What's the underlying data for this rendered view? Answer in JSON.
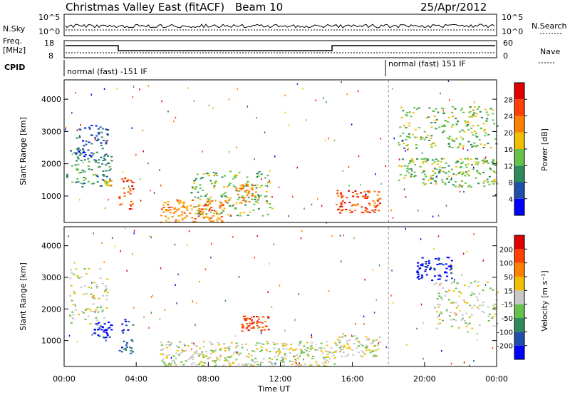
{
  "header": {
    "station": "Christmas Valley East (fitACF)",
    "beam": "Beam 10",
    "date": "25/Apr/2012"
  },
  "noise_panel": {
    "left_label": "N.Sky",
    "right_label": "N.Search",
    "left_ticks": [
      "10^5",
      "10^0"
    ],
    "right_ticks": [
      "10^5",
      "10^0"
    ]
  },
  "freq_panel": {
    "left_label_line1": "Freq.",
    "left_label_line2": "[MHz]",
    "right_label": "Nave",
    "left_ticks": [
      "18",
      "8"
    ],
    "right_ticks": [
      "60",
      "0"
    ]
  },
  "cpid": {
    "label": "CPID",
    "segments": [
      {
        "start_hour": 0,
        "end_hour": 18.0,
        "text": "normal (fast) -151 IF"
      },
      {
        "start_hour": 18.0,
        "end_hour": 24,
        "text": "normal (fast) 151 IF"
      }
    ]
  },
  "time_axis": {
    "label": "Time UT",
    "ticks": [
      "00:00",
      "04:00",
      "08:00",
      "12:00",
      "16:00",
      "20:00",
      "00:00"
    ]
  },
  "chart_data": [
    {
      "type": "heatmap",
      "name": "power",
      "ylabel": "Slant Range [km]",
      "yticks": [
        1000,
        2000,
        3000,
        4000
      ],
      "ylim": [
        180,
        4600
      ],
      "xlim": [
        0,
        24
      ],
      "colorbar": {
        "label": "Power [dB]",
        "ticks": [
          "4",
          "8",
          "12",
          "16",
          "20",
          "24",
          "28"
        ],
        "colors": [
          "#0000ff",
          "#1f4fa8",
          "#2d8a5a",
          "#66c24a",
          "#f0c000",
          "#ff8000",
          "#ff4000",
          "#e00000"
        ]
      },
      "features": [
        {
          "t0": 0.1,
          "t1": 2.6,
          "r0": 1300,
          "r1": 2500,
          "level": 2
        },
        {
          "t0": 0.6,
          "t1": 2.4,
          "r0": 2200,
          "r1": 3300,
          "level": 1
        },
        {
          "t0": 2.2,
          "t1": 2.6,
          "r0": 1300,
          "r1": 1500,
          "level": 4
        },
        {
          "t0": 3.0,
          "t1": 3.8,
          "r0": 600,
          "r1": 1700,
          "level": 6
        },
        {
          "t0": 5.3,
          "t1": 9.0,
          "r0": 200,
          "r1": 900,
          "level": 5
        },
        {
          "t0": 7.0,
          "t1": 11.5,
          "r0": 400,
          "r1": 1800,
          "level": 3
        },
        {
          "t0": 9.5,
          "t1": 10.6,
          "r0": 800,
          "r1": 1400,
          "level": 5
        },
        {
          "t0": 15.0,
          "t1": 17.5,
          "r0": 500,
          "r1": 1200,
          "level": 6
        },
        {
          "t0": 18.5,
          "t1": 24.0,
          "r0": 2500,
          "r1": 3800,
          "level": 3
        },
        {
          "t0": 18.5,
          "t1": 24.0,
          "r0": 1300,
          "r1": 2200,
          "level": 3
        }
      ]
    },
    {
      "type": "heatmap",
      "name": "velocity",
      "ylabel": "Slant Range [km]",
      "yticks": [
        1000,
        2000,
        3000,
        4000
      ],
      "ylim": [
        180,
        4600
      ],
      "xlim": [
        0,
        24
      ],
      "colorbar": {
        "label": "Velocity [m s⁻¹]",
        "ticks": [
          "200",
          "100",
          "50",
          "15",
          "-15",
          "-50",
          "-100",
          "-200"
        ],
        "colors": [
          "#0000ff",
          "#1f4fa8",
          "#2d8a5a",
          "#66c24a",
          "#c8c8c8",
          "#f0c000",
          "#ff8000",
          "#ff4000",
          "#e00000"
        ]
      },
      "features": [
        {
          "t0": 0.1,
          "t1": 2.4,
          "r0": 1500,
          "r1": 3300,
          "level": 4
        },
        {
          "t0": 1.6,
          "t1": 2.6,
          "r0": 1100,
          "r1": 1600,
          "level": 0
        },
        {
          "t0": 3.0,
          "t1": 3.8,
          "r0": 600,
          "r1": 1700,
          "level": 1
        },
        {
          "t0": 5.3,
          "t1": 15.0,
          "r0": 200,
          "r1": 1000,
          "level": 4
        },
        {
          "t0": 9.8,
          "t1": 11.3,
          "r0": 1300,
          "r1": 1800,
          "level": 7
        },
        {
          "t0": 15.0,
          "t1": 17.5,
          "r0": 500,
          "r1": 1200,
          "level": 4
        },
        {
          "t0": 19.5,
          "t1": 21.5,
          "r0": 2900,
          "r1": 3700,
          "level": 0
        },
        {
          "t0": 20.5,
          "t1": 24.0,
          "r0": 1400,
          "r1": 2900,
          "level": 4
        }
      ]
    }
  ]
}
